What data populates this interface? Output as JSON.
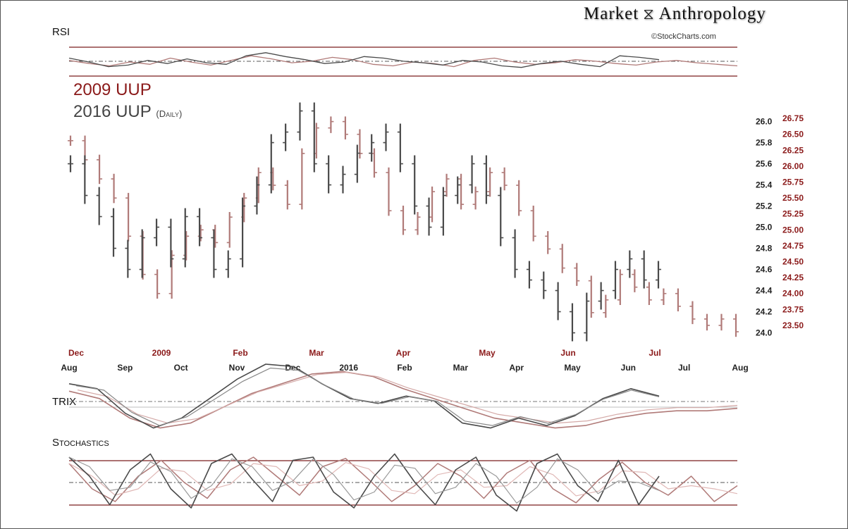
{
  "brand": {
    "title": "Market",
    "title2": "Anthropology",
    "copyright": "©StockCharts.com"
  },
  "panels": {
    "rsi": "RSI",
    "trix": "TRIX",
    "stoch": "Stochastics"
  },
  "legend": {
    "series_2009_year": "2009",
    "series_2009_name": "UUP",
    "series_2016_year": "2016",
    "series_2016_name": "UUP",
    "series_2016_note": "(Daily)"
  },
  "colors": {
    "s2009": "#b07a78",
    "s2016": "#4a4a4a",
    "accent": "#8b1a1a",
    "band": "#7a1f1f"
  },
  "chart_data": [
    {
      "type": "line",
      "name": "price",
      "y_left_2016": {
        "ticks": [
          24.0,
          24.2,
          24.4,
          24.6,
          24.8,
          25.0,
          25.2,
          25.4,
          25.6,
          25.8,
          26.0
        ],
        "ylim": [
          23.95,
          26.15
        ]
      },
      "y_right_2009": {
        "ticks": [
          "23.50",
          "23.75",
          "24.00",
          "24.25",
          "24.50",
          "24.75",
          "25.00",
          "25.25",
          "25.50",
          "25.75",
          "26.00",
          "26.25",
          "26.50",
          "26.75"
        ],
        "ylim": [
          23.3,
          26.95
        ]
      },
      "x_2009_labels": [
        "Dec",
        "2009",
        "Feb",
        "Mar",
        "Apr",
        "May",
        "Jun",
        "Jul"
      ],
      "x_2016_labels": [
        "Aug",
        "Sep",
        "Oct",
        "Nov",
        "Dec",
        "2016",
        "Feb",
        "Mar",
        "Apr",
        "May",
        "Jun",
        "Jul",
        "Aug"
      ],
      "series": [
        {
          "name": "2009 UUP",
          "values": [
            26.4,
            26.1,
            25.8,
            25.5,
            24.9,
            24.3,
            24.0,
            24.6,
            24.9,
            25.0,
            24.8,
            25.2,
            25.5,
            25.9,
            25.7,
            25.4,
            26.2,
            26.6,
            26.7,
            26.5,
            26.2,
            25.9,
            25.3,
            25.0,
            25.2,
            25.6,
            25.8,
            25.4,
            25.6,
            25.9,
            25.7,
            25.3,
            24.9,
            24.7,
            24.4,
            24.2,
            23.7,
            23.9,
            24.3,
            24.1,
            23.9,
            24.0,
            23.8,
            23.6,
            23.5,
            23.6,
            23.4
          ]
        },
        {
          "name": "2016 UUP",
          "values": [
            25.6,
            25.3,
            25.1,
            24.8,
            24.6,
            24.9,
            25.0,
            24.7,
            25.1,
            24.9,
            24.6,
            24.7,
            25.2,
            25.4,
            25.8,
            25.9,
            26.1,
            25.6,
            25.4,
            25.5,
            25.7,
            25.8,
            25.9,
            25.6,
            25.2,
            25.0,
            25.3,
            25.4,
            25.6,
            25.3,
            24.9,
            24.6,
            24.5,
            24.4,
            24.2,
            24.0,
            24.3,
            24.4,
            24.6,
            24.7,
            24.5,
            24.6
          ]
        }
      ]
    },
    {
      "type": "line",
      "name": "RSI",
      "series": [
        {
          "name": "2009",
          "values": [
            52,
            48,
            45,
            50,
            47,
            55,
            50,
            46,
            52,
            58,
            54,
            49,
            51,
            56,
            53,
            47,
            45,
            50,
            48,
            44,
            52,
            55,
            50,
            47,
            49,
            53,
            51,
            48,
            46,
            50,
            52,
            49,
            47,
            45
          ]
        },
        {
          "name": "2016",
          "values": [
            55,
            50,
            44,
            46,
            52,
            48,
            54,
            49,
            47,
            58,
            62,
            57,
            53,
            48,
            50,
            57,
            55,
            51,
            49,
            46,
            52,
            50,
            45,
            43,
            48,
            51,
            47,
            44,
            58,
            56,
            53
          ]
        }
      ]
    },
    {
      "type": "line",
      "name": "TRIX",
      "series": [
        {
          "name": "2009",
          "values": [
            0.05,
            0.02,
            -0.06,
            -0.1,
            -0.08,
            -0.02,
            0.04,
            0.08,
            0.12,
            0.13,
            0.11,
            0.06,
            0.02,
            -0.02,
            -0.06,
            -0.08,
            -0.1,
            -0.09,
            -0.06,
            -0.04,
            -0.03,
            -0.03,
            -0.02
          ]
        },
        {
          "name": "2016",
          "values": [
            0.08,
            0.06,
            -0.04,
            -0.1,
            -0.06,
            0.02,
            0.1,
            0.16,
            0.15,
            0.08,
            0.02,
            0.0,
            0.03,
            0.01,
            -0.08,
            -0.1,
            -0.06,
            -0.09,
            -0.05,
            0.02,
            0.06,
            0.03
          ]
        }
      ]
    },
    {
      "type": "line",
      "name": "Stochastics",
      "series": [
        {
          "name": "2009",
          "values": [
            80,
            40,
            20,
            60,
            85,
            50,
            25,
            70,
            90,
            60,
            30,
            75,
            88,
            55,
            20,
            45,
            80,
            60,
            25,
            65,
            85,
            40,
            18,
            55,
            82,
            50,
            30,
            60,
            20,
            45
          ]
        },
        {
          "name": "2016",
          "values": [
            90,
            60,
            15,
            70,
            95,
            40,
            10,
            80,
            95,
            55,
            20,
            85,
            90,
            35,
            10,
            60,
            95,
            50,
            15,
            70,
            90,
            30,
            5,
            80,
            95,
            45,
            20,
            85,
            15,
            60
          ]
        }
      ]
    }
  ]
}
